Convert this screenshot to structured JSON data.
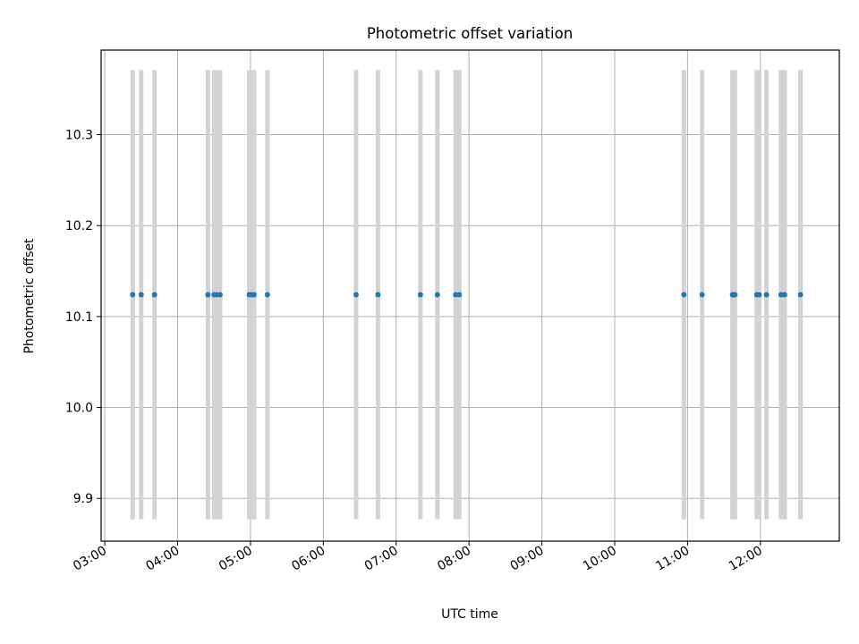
{
  "chart_data": {
    "type": "scatter",
    "title": "Photometric offset variation",
    "xlabel": "UTC time",
    "ylabel": "Photometric offset",
    "x_ticks": [
      "03:00",
      "04:00",
      "05:00",
      "06:00",
      "07:00",
      "08:00",
      "09:00",
      "10:00",
      "11:00",
      "12:00"
    ],
    "y_ticks": [
      "9.9",
      "10.0",
      "10.1",
      "10.2",
      "10.3"
    ],
    "xlim": [
      "02:57",
      "13:05"
    ],
    "ylim": [
      9.853,
      10.393
    ],
    "grid": true,
    "points": {
      "color": "#1f77b4",
      "x": [
        "03:23",
        "03:30",
        "03:41",
        "04:25",
        "04:30",
        "04:32",
        "04:35",
        "04:59",
        "05:01",
        "05:03",
        "05:14",
        "06:27",
        "06:45",
        "07:20",
        "07:34",
        "07:49",
        "07:52",
        "10:57",
        "11:12",
        "11:37",
        "11:38",
        "11:39",
        "11:57",
        "11:59",
        "12:05",
        "12:17",
        "12:20",
        "12:33"
      ],
      "y": [
        10.124,
        10.124,
        10.124,
        10.124,
        10.124,
        10.124,
        10.124,
        10.124,
        10.124,
        10.124,
        10.124,
        10.124,
        10.124,
        10.124,
        10.124,
        10.124,
        10.124,
        10.124,
        10.124,
        10.124,
        10.124,
        10.124,
        10.124,
        10.124,
        10.124,
        10.124,
        10.124,
        10.124
      ]
    },
    "bands": {
      "color": "#d3d3d3",
      "ymin": 9.877,
      "ymax": 10.371,
      "x": [
        "03:23",
        "03:30",
        "03:41",
        "04:25",
        "04:30",
        "04:32",
        "04:35",
        "04:59",
        "05:01",
        "05:03",
        "05:14",
        "06:27",
        "06:45",
        "07:20",
        "07:34",
        "07:49",
        "07:52",
        "10:57",
        "11:12",
        "11:37",
        "11:38",
        "11:39",
        "11:57",
        "11:59",
        "12:05",
        "12:17",
        "12:20",
        "12:33"
      ]
    }
  }
}
